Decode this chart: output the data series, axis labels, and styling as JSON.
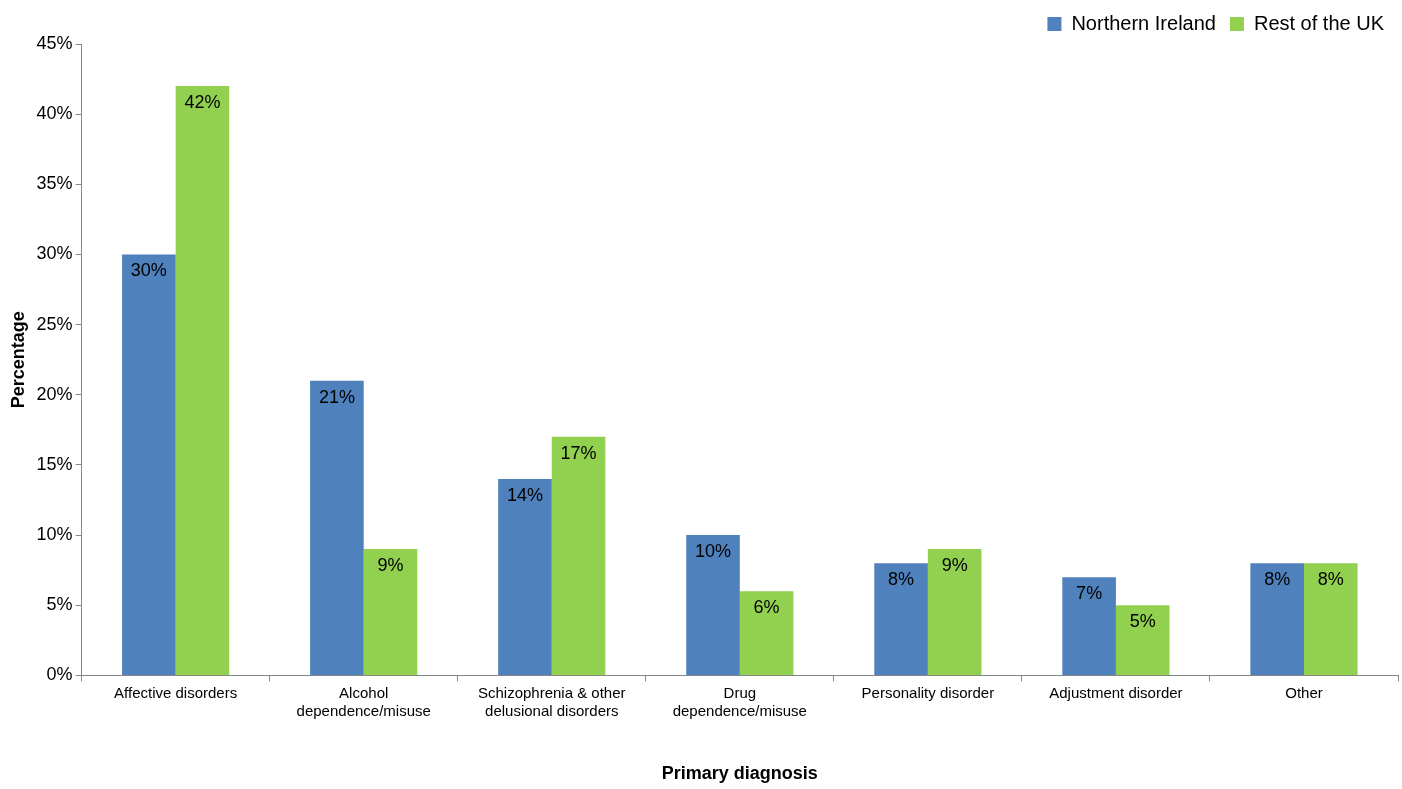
{
  "chart_data": {
    "type": "bar",
    "xlabel": "Primary diagnosis",
    "ylabel": "Percentage",
    "categories": [
      "Affective disorders",
      "Alcohol dependence/misuse",
      "Schizophrenia & other delusional disorders",
      "Drug dependence/misuse",
      "Personality disorder",
      "Adjustment disorder",
      "Other"
    ],
    "series": [
      {
        "name": "Northern Ireland",
        "color": "#4f81bd",
        "values": [
          30,
          21,
          14,
          10,
          8,
          7,
          8
        ],
        "value_labels": [
          "30%",
          "21%",
          "14%",
          "10%",
          "8%",
          "7%",
          "8%"
        ]
      },
      {
        "name": "Rest of the UK",
        "color": "#92d050",
        "values": [
          42,
          9,
          17,
          6,
          9,
          5,
          8
        ],
        "value_labels": [
          "42%",
          "9%",
          "17%",
          "6%",
          "9%",
          "5%",
          "8%"
        ]
      }
    ],
    "ylim": [
      0,
      45
    ],
    "yticks": [
      {
        "value": 0,
        "label": "0%"
      },
      {
        "value": 5,
        "label": "5%"
      },
      {
        "value": 10,
        "label": "10%"
      },
      {
        "value": 15,
        "label": "15%"
      },
      {
        "value": 20,
        "label": "20%"
      },
      {
        "value": 25,
        "label": "25%"
      },
      {
        "value": 30,
        "label": "30%"
      },
      {
        "value": 35,
        "label": "35%"
      },
      {
        "value": 40,
        "label": "40%"
      },
      {
        "value": 45,
        "label": "45%"
      }
    ],
    "grid": false,
    "legend": "top right"
  }
}
